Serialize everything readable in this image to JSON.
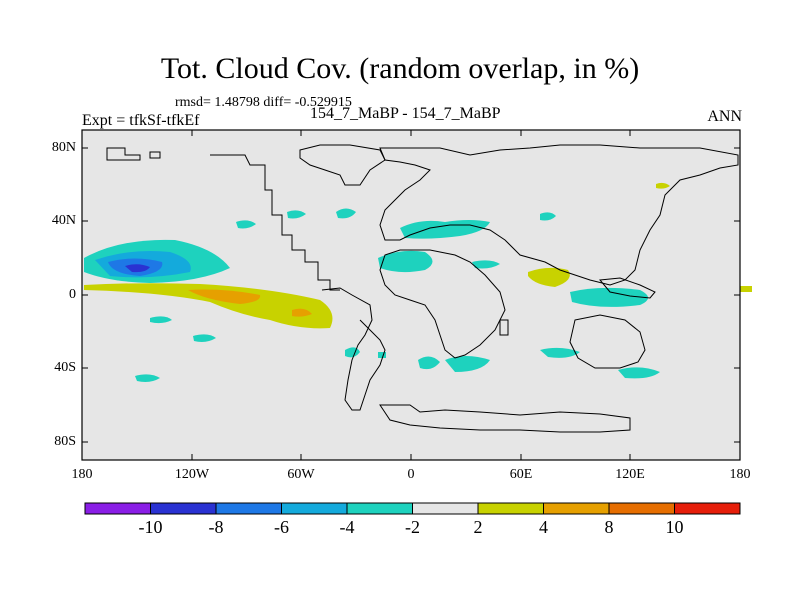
{
  "title": "Tot. Cloud Cov. (random overlap, in %)",
  "stats": "rmsd= 1.48798 diff= -0.529915",
  "experiment": "Expt = tfkSf-tfkEf",
  "cases": "154_7_MaBP - 154_7_MaBP",
  "season": "ANN",
  "map": {
    "background_color": "#e6e6e6",
    "lat_ticks": [
      "80N",
      "40N",
      "0",
      "40S",
      "80S"
    ],
    "lon_ticks": [
      "180",
      "120W",
      "60W",
      "0",
      "60E",
      "120E",
      "180"
    ]
  },
  "colorbar": {
    "colors": [
      "#8a1ee6",
      "#2a32d2",
      "#1e78e6",
      "#14aadc",
      "#1ed2be",
      "#e6e6e6",
      "#c8d200",
      "#e6a000",
      "#e66e00",
      "#e61e0a"
    ],
    "labels": [
      "-10",
      "-8",
      "-6",
      "-4",
      "-2",
      "2",
      "4",
      "8",
      "10"
    ]
  }
}
